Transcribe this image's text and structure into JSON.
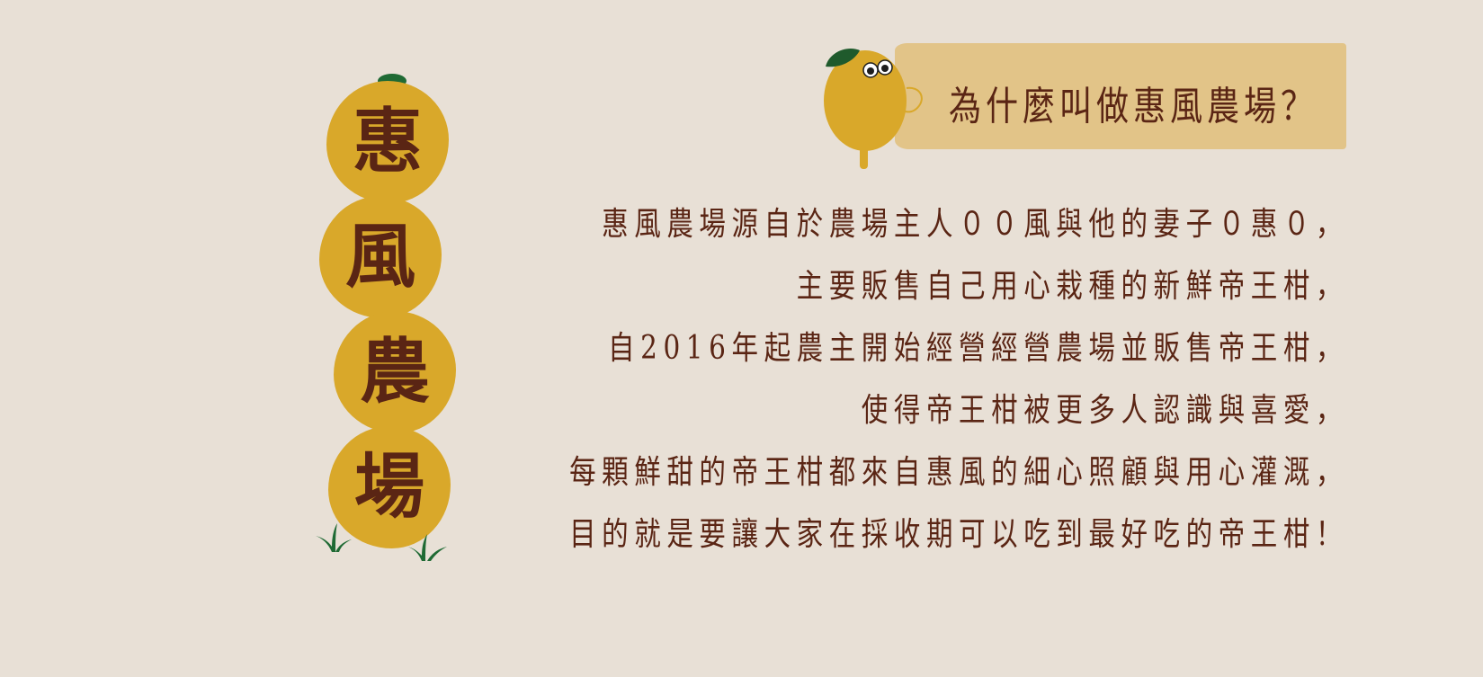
{
  "logo": {
    "chars": [
      "惠",
      "風",
      "農",
      "場"
    ]
  },
  "banner": {
    "title": "為什麼叫做惠風農場？"
  },
  "body": {
    "lines": [
      "惠風農場源自於農場主人００風與他的妻子０惠０，",
      "主要販售自己用心栽種的新鮮帝王柑，",
      "自2016年起農主開始經營經營農場並販售帝王柑，",
      "使得帝王柑被更多人認識與喜愛，",
      "每顆鮮甜的帝王柑都來自惠風的細心照顧與用心灌溉，",
      "目的就是要讓大家在採收期可以吃到最好吃的帝王柑！"
    ]
  },
  "colors": {
    "background": "#e8e0d6",
    "orange": "#d9a82a",
    "text": "#5a2514",
    "banner": "#e2c488",
    "leaf": "#1f6a34"
  }
}
